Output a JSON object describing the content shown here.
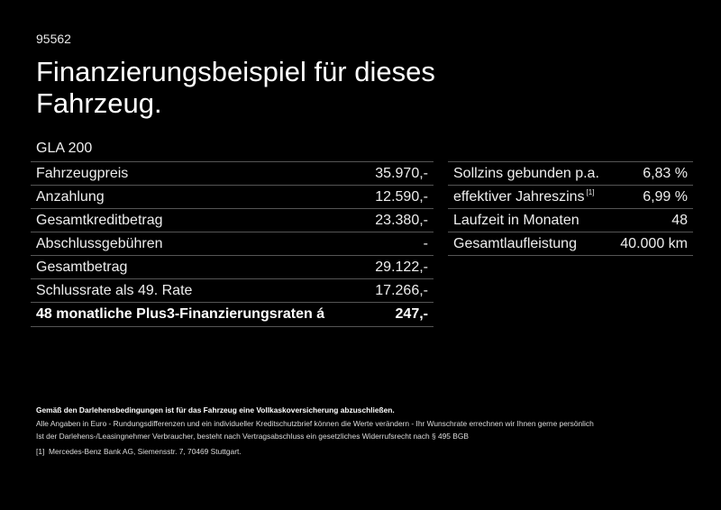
{
  "header": {
    "code": "95562",
    "title": "Finanzierungsbeispiel für dieses Fahrzeug.",
    "model": "GLA 200"
  },
  "left_table": {
    "rows": [
      {
        "label": "Fahrzeugpreis",
        "value": "35.970,-"
      },
      {
        "label": "Anzahlung",
        "value": "12.590,-"
      },
      {
        "label": "Gesamtkreditbetrag",
        "value": "23.380,-"
      },
      {
        "label": "Abschlussgebühren",
        "value": "-"
      },
      {
        "label": "Gesamtbetrag",
        "value": "29.122,-"
      },
      {
        "label": "Schlussrate als 49. Rate",
        "value": "17.266,-"
      },
      {
        "label": "48 monatliche Plus3-Finanzierungsraten á",
        "value": "247,-",
        "bold": true
      }
    ]
  },
  "right_table": {
    "rows": [
      {
        "label": "Sollzins gebunden p.a.",
        "value": "6,83 %"
      },
      {
        "label": "effektiver Jahreszins",
        "footnote": "[1]",
        "value": "6,99 %"
      },
      {
        "label": "Laufzeit in Monaten",
        "value": "48"
      },
      {
        "label": "Gesamtlaufleistung",
        "value": "40.000 km"
      }
    ]
  },
  "footer": {
    "bold_line": "Gemäß den Darlehensbedingungen ist für das Fahrzeug eine Vollkaskoversicherung abzuschließen.",
    "line1": "Alle Angaben in Euro - Rundungsdifferenzen und ein individueller Kreditschutzbrief können die Werte verändern - Ihr Wunschrate errechnen wir Ihnen gerne persönlich",
    "line2": "Ist der Darlehens-/Leasingnehmer Verbraucher, besteht nach Vertragsabschluss ein gesetzliches Widerrufsrecht nach § 495 BGB",
    "note_marker": "[1]",
    "note_text": "Mercedes-Benz Bank AG, Siemensstr. 7, 70469 Stuttgart."
  }
}
